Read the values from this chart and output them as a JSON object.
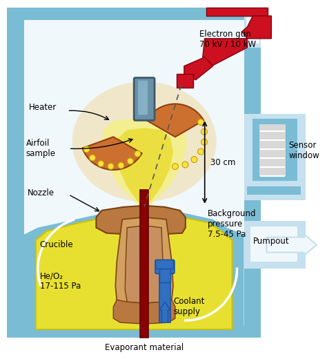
{
  "bg_color": "#ffffff",
  "chamber_blue": "#7bbcd5",
  "chamber_light": "#c5e0ee",
  "inner_white": "#f0f8fc",
  "crucible_yellow": "#e8e030",
  "crucible_yellow_dark": "#c8c010",
  "nozzle_brown": "#b87840",
  "nozzle_light": "#d4a060",
  "heater_orange": "#cc7030",
  "rod_red": "#8b0000",
  "coolant_blue": "#3070c0",
  "electron_gun_red": "#cc1020",
  "sensor_hatch": "#cccccc",
  "glow_yellow": "#f0d840",
  "glow_light": "#f8f0a0",
  "beam_yellow": "#e8e040",
  "white": "#ffffff",
  "text_color": "#000000",
  "labels": {
    "electron_gun": "Electron gun\n70 kV / 10 kW",
    "heater": "Heater",
    "airfoil": "Airfoil\nsample",
    "nozzle": "Nozzle",
    "crucible": "Crucible",
    "he_o2": "He/O₂\n17-115 Pa",
    "evaporant": "Evaporant material",
    "coolant": "Coolant\nsupply",
    "bg_pressure": "Background\npressure\n7.5-45 Pa",
    "pumpout": "Pumpout",
    "sensor": "Sensor\nwindow",
    "distance": "30 cm"
  }
}
